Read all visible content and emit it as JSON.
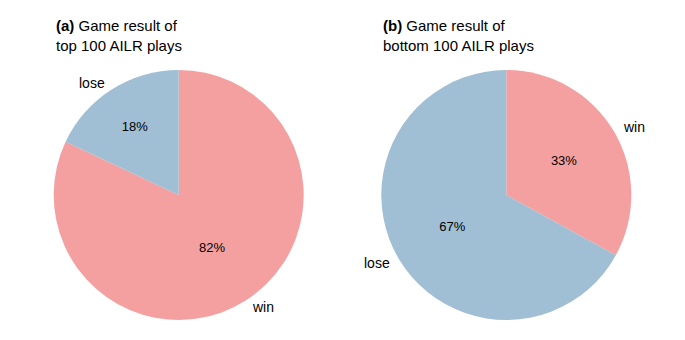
{
  "chart_data": [
    {
      "type": "pie",
      "label": "(a)",
      "title": [
        "Game result of",
        "top 100 AILR plays"
      ],
      "categories": [
        "win",
        "lose"
      ],
      "values": [
        82,
        18
      ],
      "value_labels": [
        "82%",
        "18%"
      ],
      "colors": [
        "#F4A0A0",
        "#A0BED4"
      ],
      "data_labels": true
    },
    {
      "type": "pie",
      "label": "(b)",
      "title": [
        "Game result of",
        "bottom 100 AILR plays"
      ],
      "categories": [
        "win",
        "lose"
      ],
      "values": [
        33,
        67
      ],
      "value_labels": [
        "33%",
        "67%"
      ],
      "colors": [
        "#F4A0A0",
        "#A0BED4"
      ],
      "data_labels": true
    }
  ]
}
